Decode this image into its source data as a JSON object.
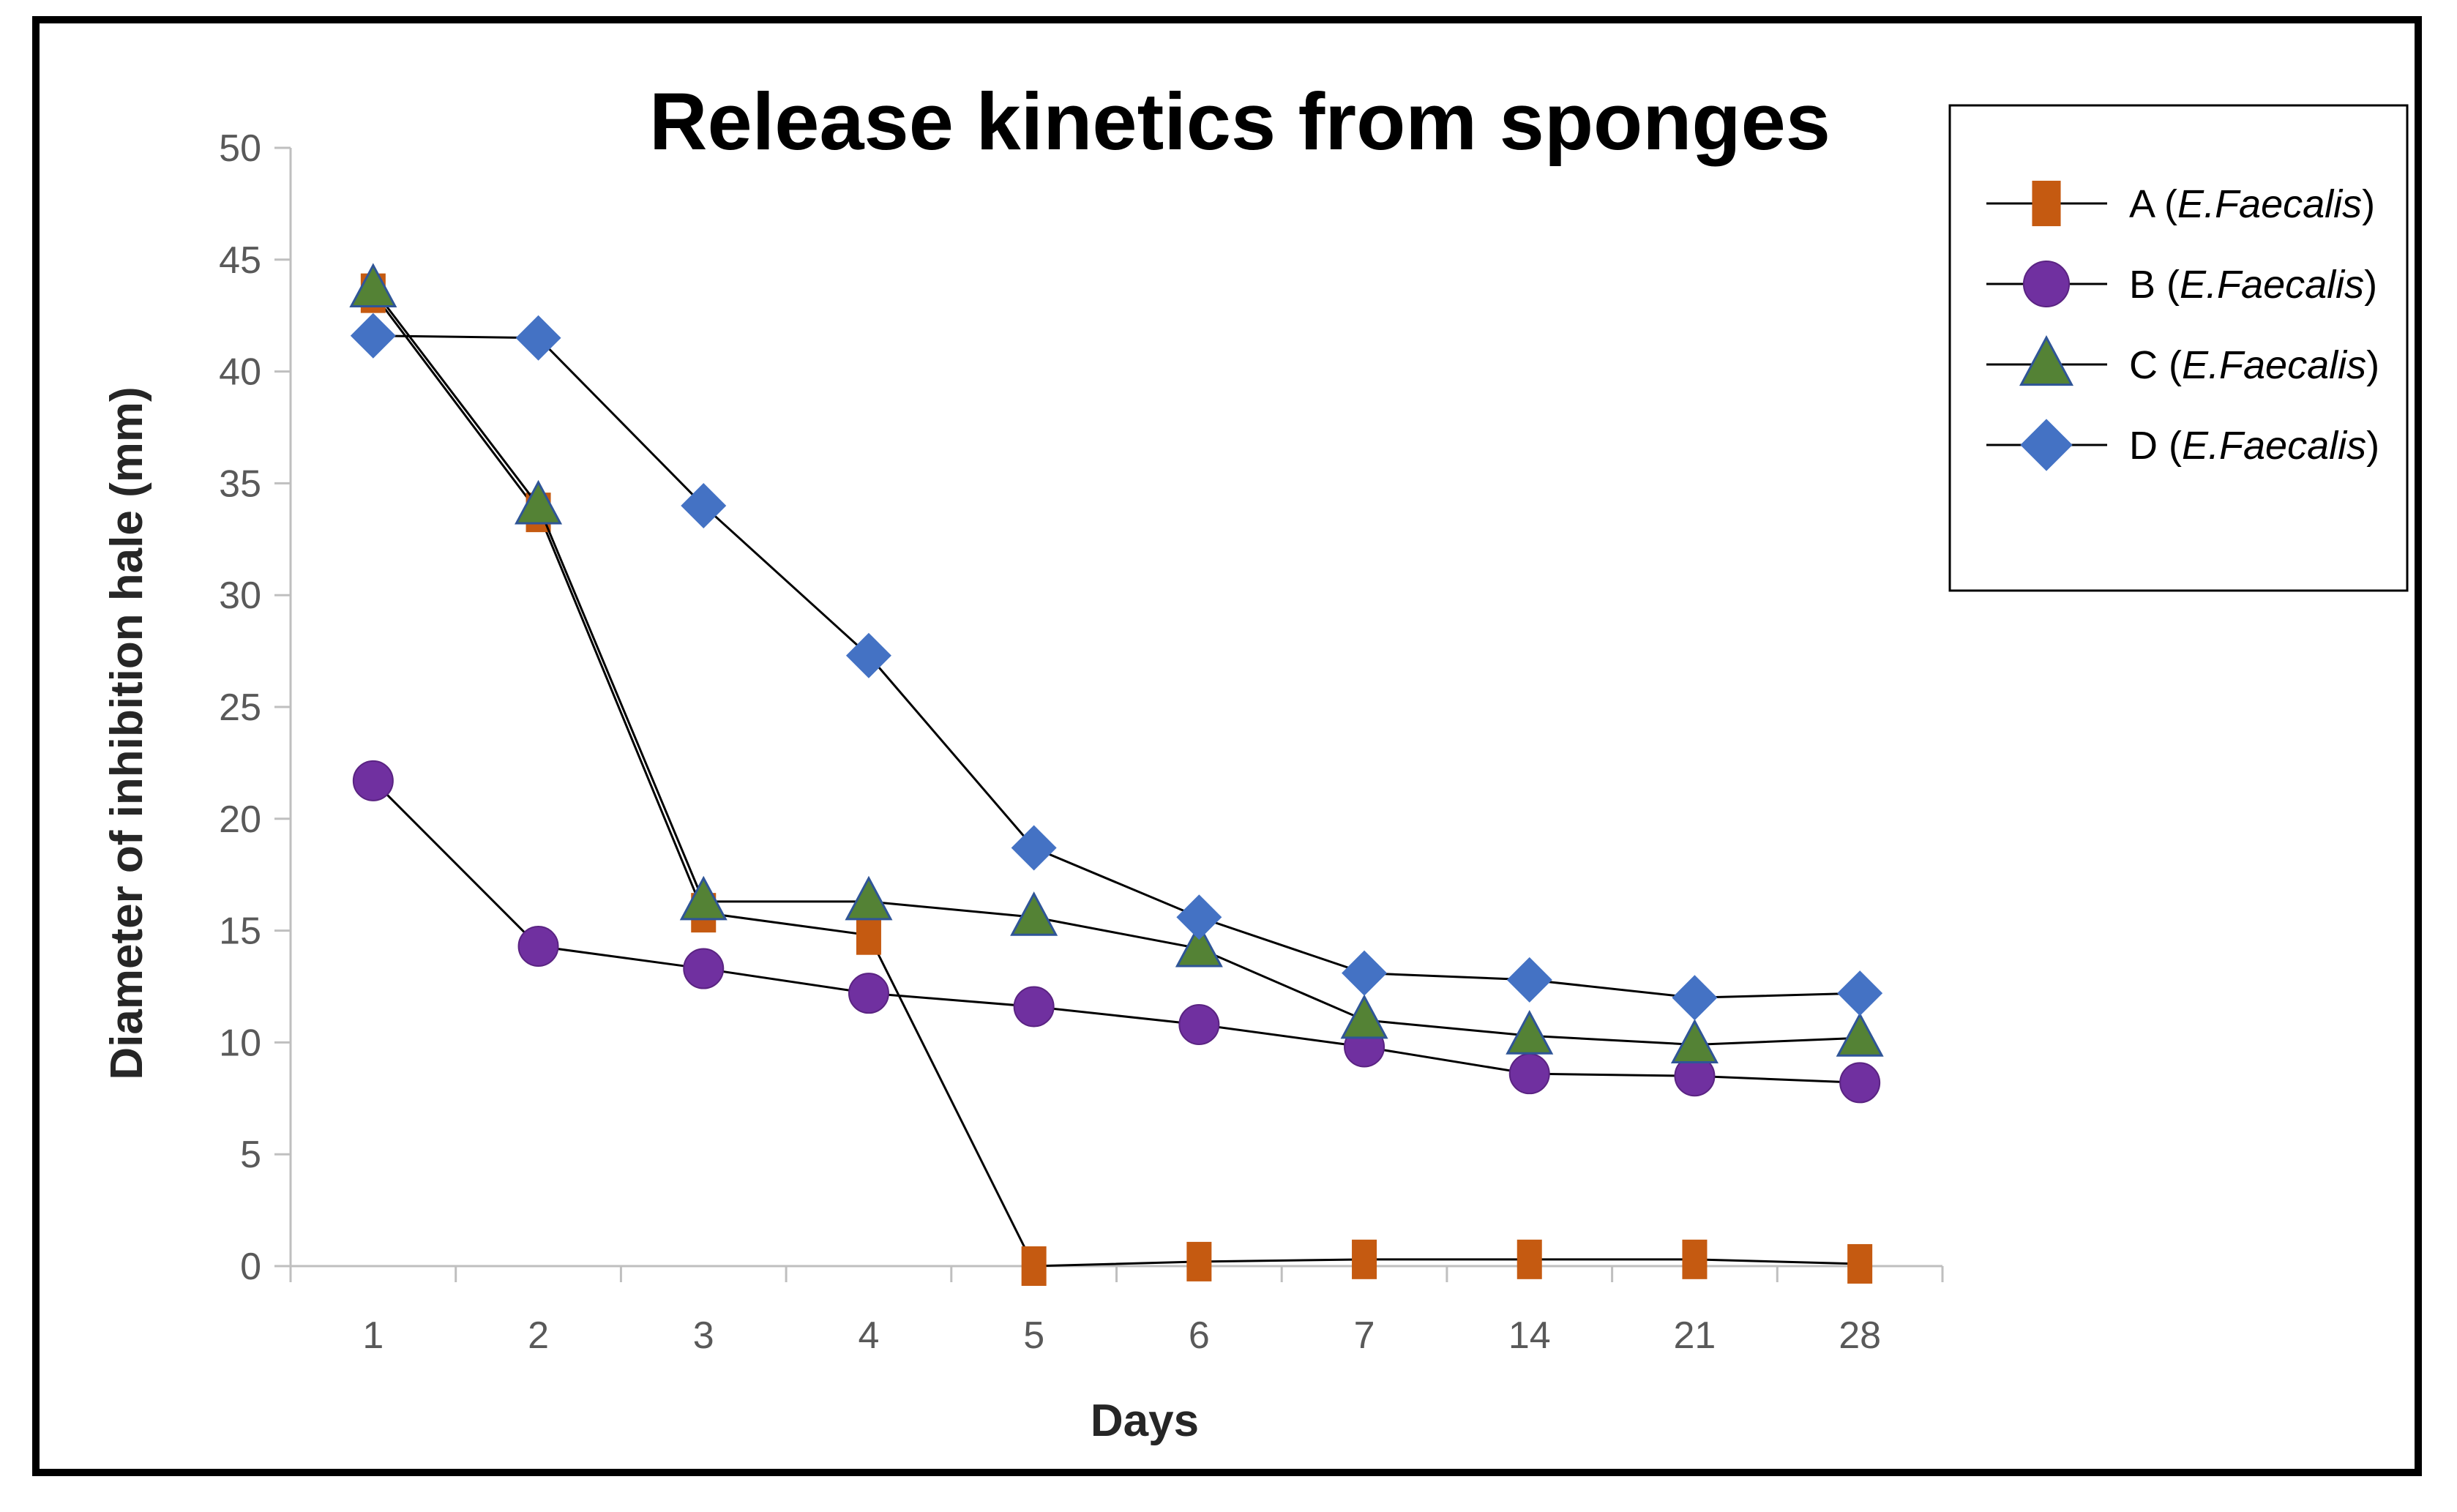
{
  "chart_data": {
    "type": "line",
    "title": "Release kinetics from sponges",
    "xlabel": "Days",
    "ylabel": "Diameter of inhibition hale (mm)",
    "categories": [
      "1",
      "2",
      "3",
      "4",
      "5",
      "6",
      "7",
      "14",
      "21",
      "28"
    ],
    "ylim": [
      0,
      50
    ],
    "yticks": [
      0,
      5,
      10,
      15,
      20,
      25,
      30,
      35,
      40,
      45,
      50
    ],
    "grid": false,
    "legend_position": "top-right",
    "series": [
      {
        "name": "A",
        "organism": "E.Faecalis",
        "marker": "square",
        "color": "#C55A11",
        "values": [
          43.5,
          33.7,
          15.8,
          14.8,
          0,
          0.2,
          0.3,
          0.3,
          0.3,
          0.1
        ]
      },
      {
        "name": "B",
        "organism": "E.Faecalis",
        "marker": "circle",
        "color": "#7030A0",
        "values": [
          21.7,
          14.3,
          13.3,
          12.2,
          11.6,
          10.8,
          9.8,
          8.6,
          8.5,
          8.2
        ]
      },
      {
        "name": "C",
        "organism": "E.Faecalis",
        "marker": "triangle",
        "color": "#548235",
        "values": [
          43.7,
          34.0,
          16.3,
          16.3,
          15.6,
          14.2,
          11.0,
          10.3,
          9.9,
          10.2
        ]
      },
      {
        "name": "D",
        "organism": "E.Faecalis",
        "marker": "diamond",
        "color": "#4472C4",
        "values": [
          41.6,
          41.5,
          34.0,
          27.3,
          18.7,
          15.6,
          13.1,
          12.8,
          12.0,
          12.2
        ]
      }
    ]
  }
}
